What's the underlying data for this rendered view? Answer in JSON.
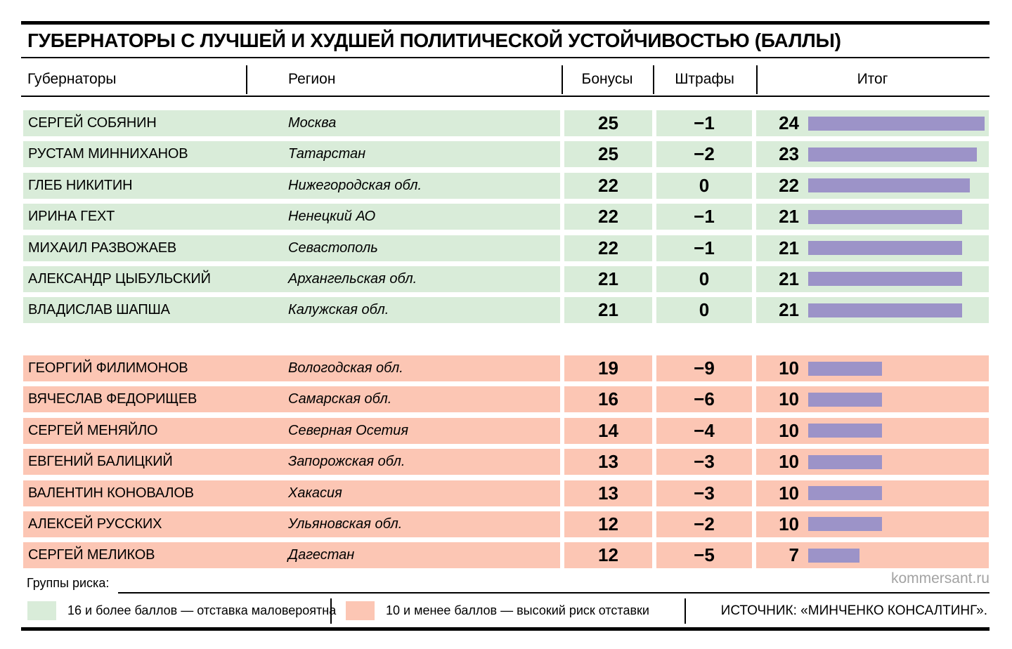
{
  "title": "ГУБЕРНАТОРЫ С ЛУЧШЕЙ И ХУДШЕЙ ПОЛИТИЧЕСКОЙ УСТОЙЧИВОСТЬЮ (БАЛЛЫ)",
  "columns": {
    "governor": "Губернаторы",
    "region": "Регион",
    "bonus": "Бонусы",
    "penalty": "Штрафы",
    "total": "Итог"
  },
  "colors": {
    "good_bg": "#d9ecd9",
    "risk_bg": "#fcc6b4",
    "bar": "#9c93c8",
    "rule": "#000000",
    "watermark": "#a3a3a3"
  },
  "legend": {
    "label": "Группы риска:",
    "items": [
      {
        "group": "good",
        "text": "16 и более баллов — отставка маловероятна"
      },
      {
        "group": "risk",
        "text": "10 и менее баллов — высокий риск отставки"
      }
    ]
  },
  "source": "ИСТОЧНИК: «МИНЧЕНКО КОНСАЛТИНГ».",
  "watermark": "kommersant.ru",
  "chart_data": {
    "type": "bar",
    "orientation": "horizontal",
    "title": "ГУБЕРНАТОРЫ С ЛУЧШЕЙ И ХУДШЕЙ ПОЛИТИЧЕСКОЙ УСТОЙЧИВОСТЬЮ (БАЛЛЫ)",
    "value_axis": "Итог (баллы)",
    "xlim": [
      0,
      25
    ],
    "grid": false,
    "legend_position": "bottom",
    "groups": [
      {
        "id": "good",
        "label": "16 и более баллов — отставка маловероятна",
        "rows": [
          {
            "governor": "СЕРГЕЙ СОБЯНИН",
            "region": "Москва",
            "bonus": 25,
            "penalty": -1,
            "total": 24
          },
          {
            "governor": "РУСТАМ МИННИХАНОВ",
            "region": "Татарстан",
            "bonus": 25,
            "penalty": -2,
            "total": 23
          },
          {
            "governor": "ГЛЕБ НИКИТИН",
            "region": "Нижегородская обл.",
            "bonus": 22,
            "penalty": 0,
            "total": 22
          },
          {
            "governor": "ИРИНА ГЕХТ",
            "region": "Ненецкий АО",
            "bonus": 22,
            "penalty": -1,
            "total": 21
          },
          {
            "governor": "МИХАИЛ РАЗВОЖАЕВ",
            "region": "Севастополь",
            "bonus": 22,
            "penalty": -1,
            "total": 21
          },
          {
            "governor": "АЛЕКСАНДР ЦЫБУЛЬСКИЙ",
            "region": "Архангельская обл.",
            "bonus": 21,
            "penalty": 0,
            "total": 21
          },
          {
            "governor": "ВЛАДИСЛАВ ШАПША",
            "region": "Калужская обл.",
            "bonus": 21,
            "penalty": 0,
            "total": 21
          }
        ]
      },
      {
        "id": "risk",
        "label": "10 и менее баллов — высокий риск отставки",
        "rows": [
          {
            "governor": "ГЕОРГИЙ ФИЛИМОНОВ",
            "region": "Вологодская обл.",
            "bonus": 19,
            "penalty": -9,
            "total": 10
          },
          {
            "governor": "ВЯЧЕСЛАВ ФЕДОРИЩЕВ",
            "region": "Самарская обл.",
            "bonus": 16,
            "penalty": -6,
            "total": 10
          },
          {
            "governor": "СЕРГЕЙ МЕНЯЙЛО",
            "region": "Северная Осетия",
            "bonus": 14,
            "penalty": -4,
            "total": 10
          },
          {
            "governor": "ЕВГЕНИЙ БАЛИЦКИЙ",
            "region": "Запорожская обл.",
            "bonus": 13,
            "penalty": -3,
            "total": 10
          },
          {
            "governor": "ВАЛЕНТИН КОНОВАЛОВ",
            "region": "Хакасия",
            "bonus": 13,
            "penalty": -3,
            "total": 10
          },
          {
            "governor": "АЛЕКСЕЙ РУССКИХ",
            "region": "Ульяновская обл.",
            "bonus": 12,
            "penalty": -2,
            "total": 10
          },
          {
            "governor": "СЕРГЕЙ МЕЛИКОВ",
            "region": "Дагестан",
            "bonus": 12,
            "penalty": -5,
            "total": 7
          }
        ]
      }
    ]
  }
}
